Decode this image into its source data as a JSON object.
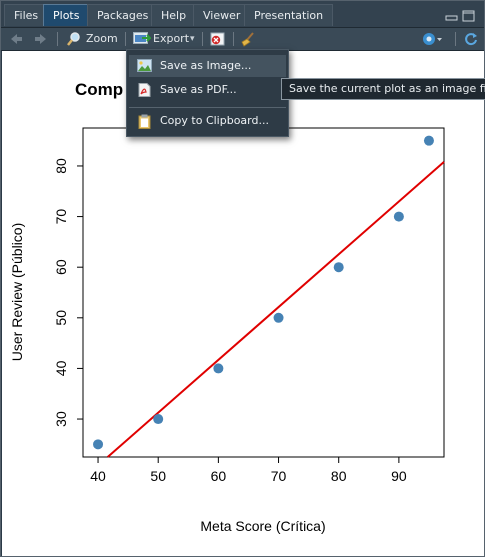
{
  "tabs": [
    {
      "label": "Files",
      "active": false
    },
    {
      "label": "Plots",
      "active": true
    },
    {
      "label": "Packages",
      "active": false
    },
    {
      "label": "Help",
      "active": false
    },
    {
      "label": "Viewer",
      "active": false
    },
    {
      "label": "Presentation",
      "active": false
    }
  ],
  "toolbar": {
    "zoom_label": "Zoom",
    "export_label": "Export",
    "export_caret": "▾"
  },
  "export_menu": {
    "items": [
      {
        "label": "Save as Image...",
        "icon": "image-icon",
        "highlighted": true
      },
      {
        "label": "Save as PDF...",
        "icon": "pdf-icon",
        "highlighted": false
      },
      {
        "label": "Copy to Clipboard...",
        "icon": "clipboard-icon",
        "highlighted": false
      }
    ]
  },
  "tooltip": "Save the current plot as an image file",
  "plot": {
    "title_partial": "Comp"
  },
  "chart_data": {
    "type": "scatter",
    "xlabel": "Meta Score (Crítica)",
    "ylabel": "User Review (Público)",
    "xlim": [
      37.5,
      97.5
    ],
    "ylim": [
      22.5,
      87.5
    ],
    "xticks": [
      40,
      50,
      60,
      70,
      80,
      90
    ],
    "yticks": [
      30,
      40,
      50,
      60,
      70,
      80
    ],
    "points": [
      {
        "x": 40,
        "y": 25
      },
      {
        "x": 50,
        "y": 30
      },
      {
        "x": 60,
        "y": 40
      },
      {
        "x": 70,
        "y": 50
      },
      {
        "x": 80,
        "y": 60
      },
      {
        "x": 90,
        "y": 70
      },
      {
        "x": 95,
        "y": 85
      }
    ],
    "fit_line": {
      "x": [
        41.6,
        97.5
      ],
      "y": [
        22.5,
        80.8
      ]
    },
    "point_color": "#4682b4",
    "line_color": "#e00000",
    "grid": false
  },
  "colors": {
    "accent": "#1f4a6e",
    "refresh": "#5aa7e0"
  }
}
